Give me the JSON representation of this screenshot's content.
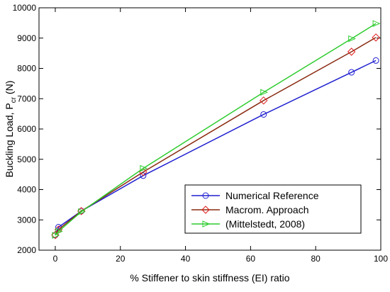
{
  "chart_data": {
    "type": "line",
    "title": "",
    "xlabel": "% Stiffener to skin stiffness (EI) ratio",
    "ylabel_main": "Buckling Load, P",
    "ylabel_sub": "cr",
    "ylabel_unit": " (N)",
    "xlim": [
      -5,
      100
    ],
    "ylim": [
      2000,
      10000
    ],
    "xticks": [
      0,
      20,
      40,
      60,
      80,
      100
    ],
    "yticks": [
      2000,
      3000,
      4000,
      5000,
      6000,
      7000,
      8000,
      9000,
      10000
    ],
    "grid": false,
    "legend_position": "bottom-right",
    "series": [
      {
        "name": "Numerical Reference",
        "color": "#1f1fd0",
        "marker": "circle",
        "x": [
          0,
          1,
          8,
          27,
          64,
          91,
          98.5
        ],
        "y": [
          2500,
          2760,
          3290,
          4460,
          6480,
          7870,
          8260
        ]
      },
      {
        "name": "Macrom. Approach",
        "color": "#e01b1b",
        "line_color": "#8a2a10",
        "marker": "diamond",
        "x": [
          0,
          1,
          8,
          27,
          64,
          91,
          98.5
        ],
        "y": [
          2500,
          2680,
          3290,
          4580,
          6940,
          8550,
          9020
        ]
      },
      {
        "name": "(Mittelstedt, 2008)",
        "color": "#2ecc2e",
        "marker": "triangle-right",
        "x": [
          0,
          1,
          8,
          27,
          64,
          91,
          98.5
        ],
        "y": [
          2490,
          2620,
          3270,
          4700,
          7210,
          8980,
          9480
        ]
      }
    ]
  }
}
